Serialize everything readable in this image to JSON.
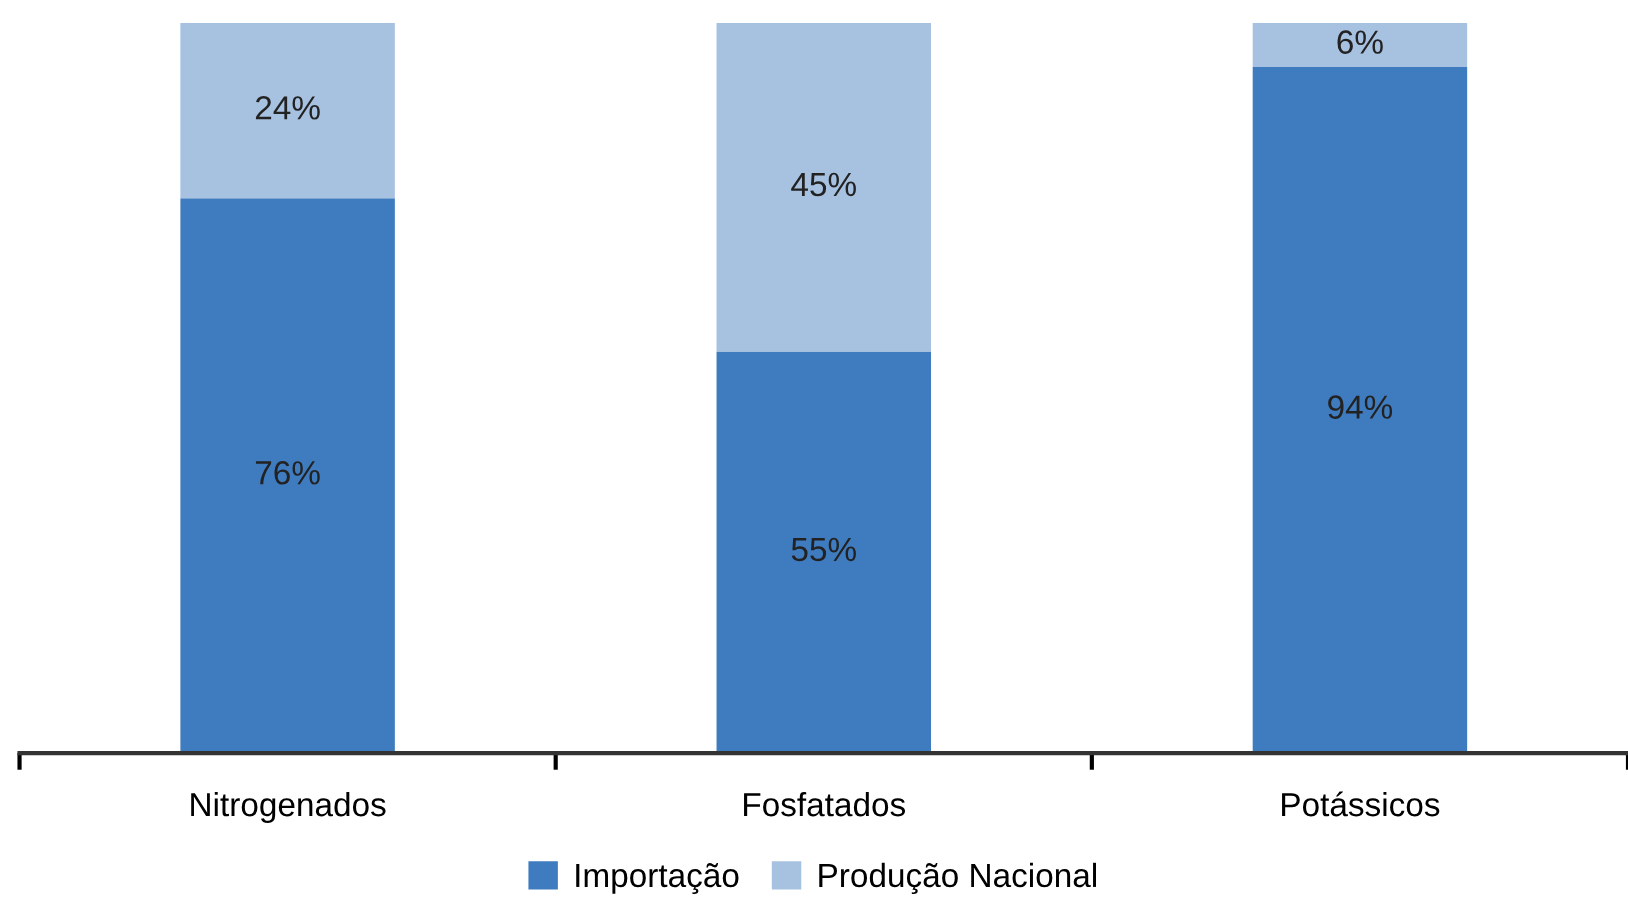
{
  "chart_data": {
    "type": "bar",
    "stacked": true,
    "categories": [
      "Nitrogenados",
      "Fosfatados",
      "Potássicos"
    ],
    "series": [
      {
        "name": "Importação",
        "color": "#3f7cbf",
        "values": [
          76,
          55,
          94
        ],
        "value_labels": [
          "76%",
          "55%",
          "94%"
        ]
      },
      {
        "name": "Produção Nacional",
        "color": "#a7c1e0",
        "values": [
          24,
          45,
          6
        ],
        "value_labels": [
          "24%",
          "45%",
          "6%"
        ]
      }
    ],
    "legend": "bottom",
    "grid": false
  }
}
